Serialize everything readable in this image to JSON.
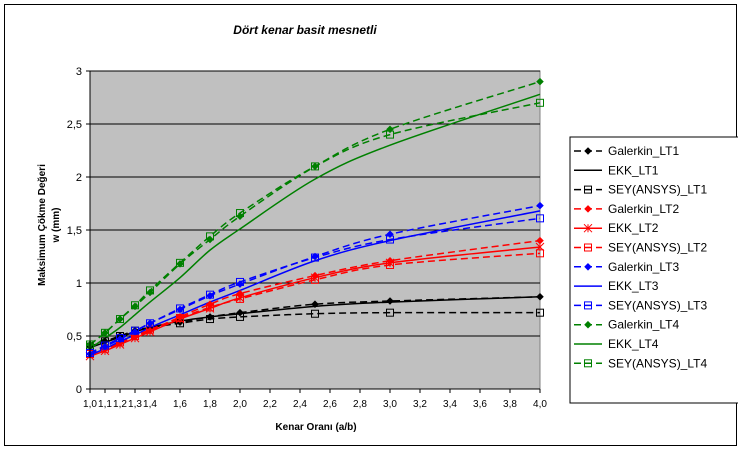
{
  "chart_data": {
    "type": "line",
    "title": "Dört kenar basit mesnetli",
    "xlabel": "Kenar Oranı (a/b)",
    "ylabel_line1": "Maksimum Çökme Değeri",
    "ylabel_line2": "w (mm)",
    "xlim": [
      1.0,
      4.0
    ],
    "ylim": [
      0,
      3
    ],
    "x_ticks": [
      "1,0",
      "1,1",
      "1,2",
      "1,3",
      "1,4",
      "1,6",
      "1,8",
      "2,0",
      "2,2",
      "2,4",
      "2,6",
      "2,8",
      "3,0",
      "3,2",
      "3,4",
      "3,6",
      "3,8",
      "4,0"
    ],
    "x_tick_values": [
      1.0,
      1.1,
      1.2,
      1.3,
      1.4,
      1.6,
      1.8,
      2.0,
      2.2,
      2.4,
      2.6,
      2.8,
      3.0,
      3.2,
      3.4,
      3.6,
      3.8,
      4.0
    ],
    "y_ticks": [
      "0",
      "0,5",
      "1",
      "1,5",
      "2",
      "2,5",
      "3"
    ],
    "y_tick_values": [
      0,
      0.5,
      1,
      1.5,
      2,
      2.5,
      3
    ],
    "grid": "horizontal",
    "plot_background": "#c0c0c0",
    "legend_position": "right",
    "x": [
      1.0,
      1.1,
      1.2,
      1.3,
      1.4,
      1.6,
      1.8,
      2.0,
      2.5,
      3.0,
      4.0
    ],
    "series": [
      {
        "name": "Galerkin_LT1",
        "color": "#000000",
        "dash": "dash",
        "marker": "diamond",
        "values": [
          0.4,
          0.45,
          0.5,
          0.55,
          0.58,
          0.63,
          0.68,
          0.72,
          0.8,
          0.83,
          0.87
        ]
      },
      {
        "name": "EKK_LT1",
        "color": "#000000",
        "dash": "solid",
        "marker": "none",
        "values": [
          0.39,
          0.44,
          0.49,
          0.54,
          0.58,
          0.64,
          0.68,
          0.71,
          0.78,
          0.82,
          0.87
        ]
      },
      {
        "name": "SEY(ANSYS)_LT1",
        "color": "#000000",
        "dash": "dash",
        "marker": "square",
        "values": [
          0.4,
          0.45,
          0.5,
          0.55,
          0.58,
          0.62,
          0.66,
          0.68,
          0.71,
          0.72,
          0.72
        ]
      },
      {
        "name": "Galerkin_LT2",
        "color": "#ff0000",
        "dash": "dash",
        "marker": "diamond",
        "values": [
          0.33,
          0.38,
          0.43,
          0.49,
          0.55,
          0.68,
          0.8,
          0.9,
          1.07,
          1.21,
          1.4
        ]
      },
      {
        "name": "EKK_LT2",
        "color": "#ff0000",
        "dash": "solid",
        "marker": "star",
        "values": [
          0.31,
          0.36,
          0.42,
          0.48,
          0.54,
          0.66,
          0.76,
          0.86,
          1.05,
          1.19,
          1.34
        ]
      },
      {
        "name": "SEY(ANSYS)_LT2",
        "color": "#ff0000",
        "dash": "dash",
        "marker": "square",
        "values": [
          0.33,
          0.38,
          0.44,
          0.5,
          0.56,
          0.67,
          0.77,
          0.85,
          1.03,
          1.17,
          1.28
        ]
      },
      {
        "name": "Galerkin_LT3",
        "color": "#0000ff",
        "dash": "dash",
        "marker": "diamond",
        "values": [
          0.33,
          0.4,
          0.47,
          0.54,
          0.62,
          0.75,
          0.88,
          0.99,
          1.25,
          1.46,
          1.73
        ]
      },
      {
        "name": "EKK_LT3",
        "color": "#0000ff",
        "dash": "solid",
        "marker": "none",
        "values": [
          0.32,
          0.38,
          0.45,
          0.51,
          0.58,
          0.7,
          0.82,
          0.93,
          1.21,
          1.4,
          1.68
        ]
      },
      {
        "name": "SEY(ANSYS)_LT3",
        "color": "#0000ff",
        "dash": "dash",
        "marker": "square",
        "values": [
          0.34,
          0.41,
          0.48,
          0.55,
          0.62,
          0.76,
          0.89,
          1.01,
          1.24,
          1.41,
          1.61
        ]
      },
      {
        "name": "Galerkin_LT4",
        "color": "#008000",
        "dash": "dash",
        "marker": "diamond",
        "values": [
          0.42,
          0.53,
          0.66,
          0.78,
          0.91,
          1.18,
          1.41,
          1.63,
          2.1,
          2.45,
          2.9
        ]
      },
      {
        "name": "EKK_LT4",
        "color": "#008000",
        "dash": "solid",
        "marker": "none",
        "values": [
          0.38,
          0.48,
          0.58,
          0.7,
          0.82,
          1.05,
          1.31,
          1.51,
          1.98,
          2.3,
          2.78
        ]
      },
      {
        "name": "SEY(ANSYS)_LT4",
        "color": "#008000",
        "dash": "dash",
        "marker": "square",
        "values": [
          0.42,
          0.53,
          0.66,
          0.79,
          0.93,
          1.19,
          1.44,
          1.66,
          2.1,
          2.4,
          2.7
        ]
      }
    ]
  }
}
